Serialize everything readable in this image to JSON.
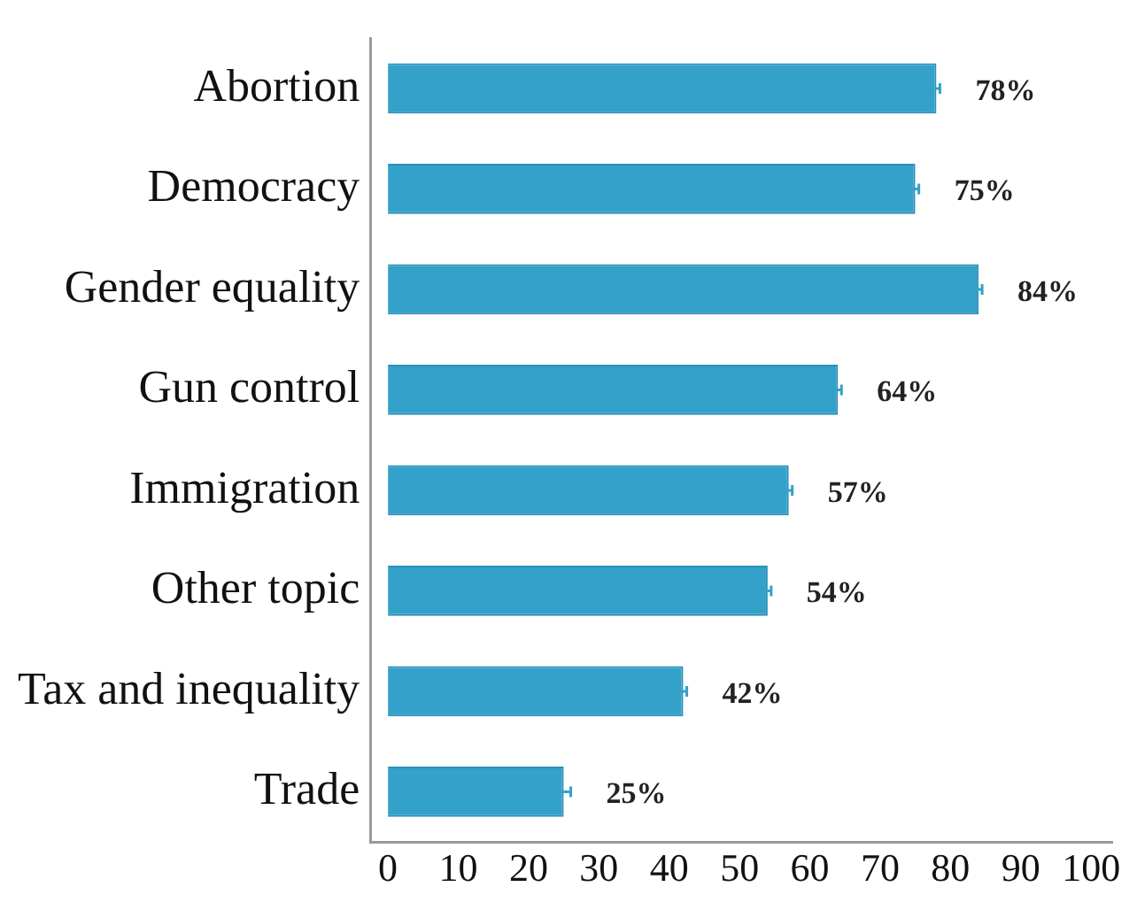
{
  "chart_data": {
    "type": "bar",
    "orientation": "horizontal",
    "categories": [
      "Abortion",
      "Democracy",
      "Gender equality",
      "Gun control",
      "Immigration",
      "Other topic",
      "Tax and inequality",
      "Trade"
    ],
    "values": [
      78,
      75,
      84,
      64,
      57,
      54,
      42,
      25
    ],
    "errors": [
      0.5,
      0.5,
      0.5,
      0.5,
      0.5,
      0.5,
      0.5,
      1
    ],
    "value_labels": [
      "78%",
      "75%",
      "84%",
      "64%",
      "57%",
      "54%",
      "42%",
      "25%"
    ],
    "color": "#33a1c9",
    "xlim": [
      -2.5,
      103
    ],
    "xticks": [
      0,
      10,
      20,
      30,
      40,
      50,
      60,
      70,
      80,
      90,
      100
    ],
    "grid": false,
    "legend": false
  }
}
